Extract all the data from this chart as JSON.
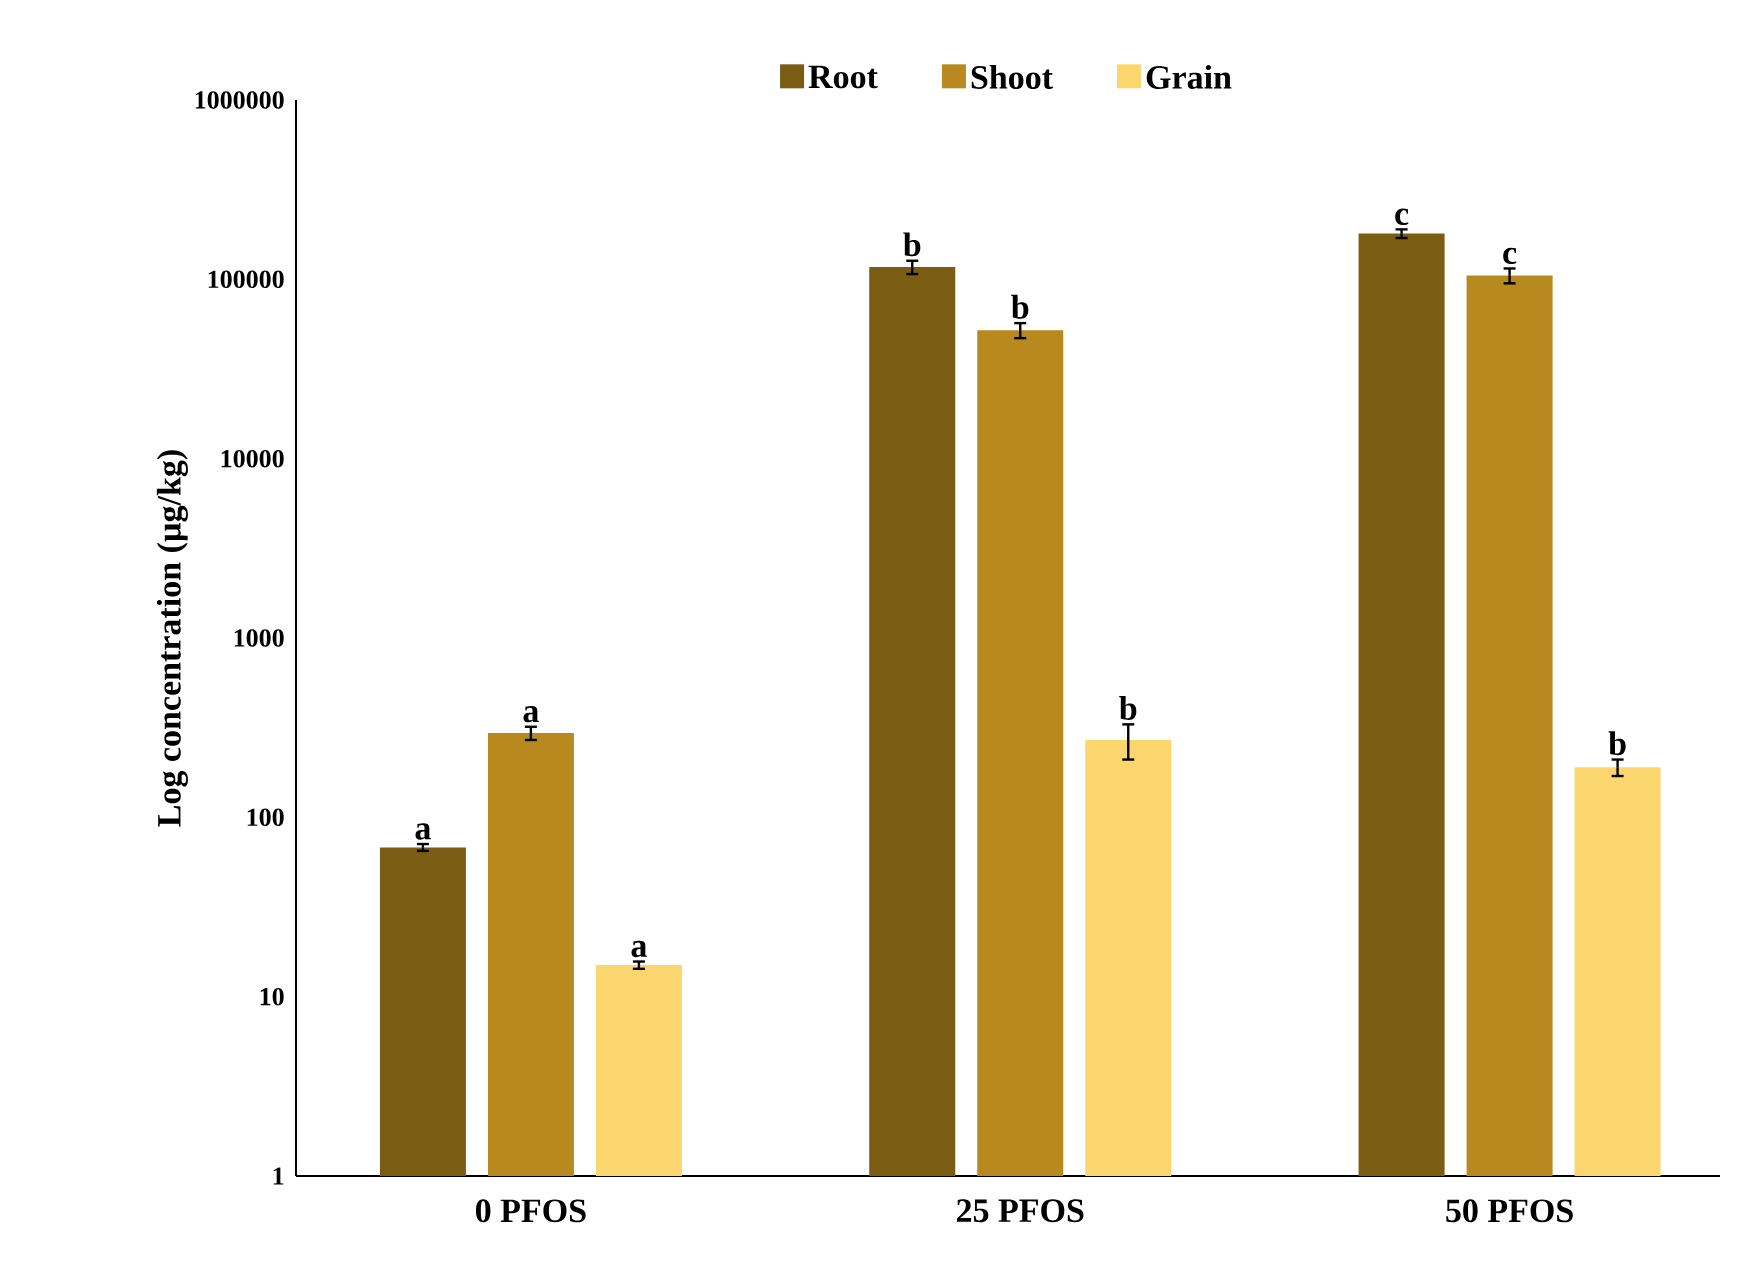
{
  "chart_data": {
    "type": "bar",
    "ylabel": "Log concentration (µg/kg)",
    "categories": [
      "0 PFOS",
      "25 PFOS",
      "50 PFOS"
    ],
    "series": [
      {
        "name": "Root",
        "color": "#7a5c12",
        "values": [
          68,
          117000,
          180000
        ],
        "errors": [
          3,
          10000,
          10000
        ]
      },
      {
        "name": "Shoot",
        "color": "#b8891e",
        "values": [
          295,
          52000,
          105000
        ],
        "errors": [
          25,
          5000,
          10000
        ]
      },
      {
        "name": "Grain",
        "color": "#fbd56e",
        "values": [
          15,
          270,
          190
        ],
        "errors": [
          0.7,
          60,
          20
        ]
      }
    ],
    "log": "y",
    "ylim": [
      1,
      1000000
    ],
    "yticks": [
      1,
      10,
      100,
      1000,
      10000,
      100000,
      1000000
    ],
    "grid": false,
    "legend": "top",
    "annotations": [
      "a",
      "a",
      "a",
      "b",
      "b",
      "b",
      "c",
      "c",
      "b"
    ]
  }
}
